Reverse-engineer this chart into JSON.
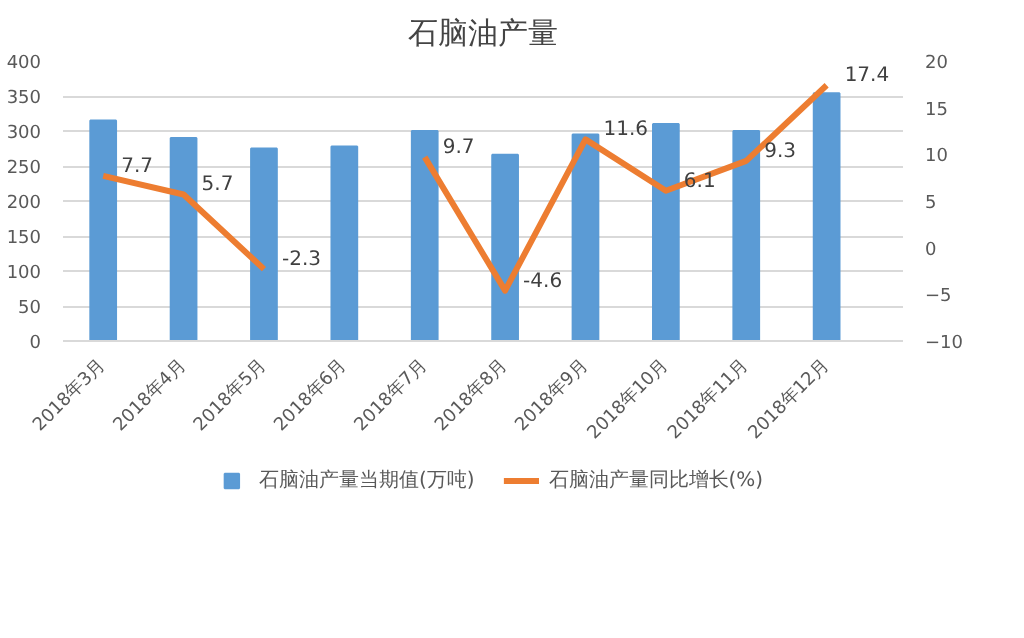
{
  "chart_data": {
    "type": "bar",
    "title": "石脑油产量",
    "categories": [
      "2018年3月",
      "2018年4月",
      "2018年5月",
      "2018年6月",
      "2018年7月",
      "2018年8月",
      "2018年9月",
      "2018年10月",
      "2018年11月",
      "2018年12月"
    ],
    "series": [
      {
        "name": "石脑油产量当期值(万吨)",
        "color": "#5b9bd5",
        "values": [
          315,
          290,
          275,
          278,
          300,
          266,
          295,
          310,
          300,
          354
        ]
      },
      {
        "name": "石脑油产量同比增长(%)",
        "color": "#ed7d31",
        "type": "line",
        "axis": "y2",
        "values": [
          7.7,
          5.7,
          -2.3,
          null,
          9.7,
          -4.6,
          11.6,
          6.1,
          9.3,
          17.4
        ],
        "value_labels": [
          "7.7",
          "5.7",
          "-2.3",
          null,
          "9.7",
          "-4.6",
          "11.6",
          "6.1",
          "9.3",
          "17.4"
        ]
      }
    ],
    "ylim": [
      0,
      400
    ],
    "yticks": [
      0,
      50,
      100,
      150,
      200,
      250,
      300,
      350,
      400
    ],
    "y2lim": [
      -10,
      20
    ],
    "y2ticks": [
      -10,
      -5,
      0,
      5,
      10,
      15,
      20
    ],
    "grid": "y",
    "legend": "bottom",
    "line_style": "solid",
    "marker": "none"
  }
}
